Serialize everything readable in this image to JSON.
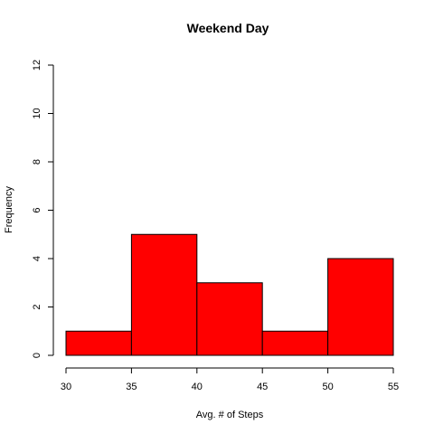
{
  "chart_data": {
    "type": "histogram",
    "title": "Weekend Day",
    "xlabel": "Avg. # of Steps",
    "ylabel": "Frequency",
    "bins": [
      {
        "start": 30,
        "end": 35,
        "count": 1
      },
      {
        "start": 35,
        "end": 40,
        "count": 5
      },
      {
        "start": 40,
        "end": 45,
        "count": 3
      },
      {
        "start": 45,
        "end": 50,
        "count": 1
      },
      {
        "start": 50,
        "end": 55,
        "count": 4
      }
    ],
    "xticks": [
      "30",
      "35",
      "40",
      "45",
      "50",
      "55"
    ],
    "yticks": [
      "0",
      "2",
      "4",
      "6",
      "8",
      "10",
      "12"
    ],
    "xlim": [
      30,
      55
    ],
    "ylim": [
      0,
      12
    ],
    "bar_color": "#ff0000",
    "grid": false,
    "legend": "none"
  }
}
